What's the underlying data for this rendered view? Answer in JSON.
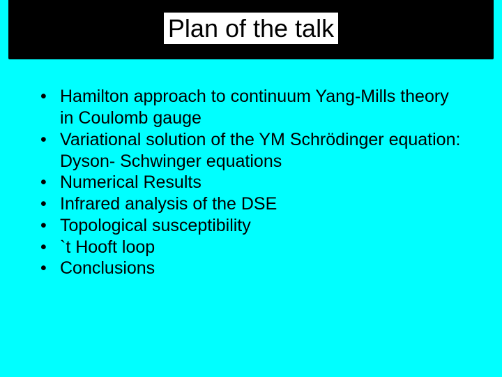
{
  "slide": {
    "background_color": "#00ffff",
    "title_bar_bg": "#000000",
    "title_text_bg": "#ffffff",
    "title_color": "#000000",
    "body_text_color": "#000000",
    "title_fontsize": 36,
    "body_fontsize": 25,
    "font_family": "Arial",
    "title": "Plan of the talk",
    "bullets": [
      "Hamilton approach to continuum Yang-Mills theory in Coulomb gauge",
      "Variational solution of the YM Schrödinger equation: Dyson- Schwinger equations",
      "Numerical Results",
      "Infrared analysis of the DSE",
      "Topological susceptibility",
      "`t Hooft loop",
      "Conclusions"
    ]
  }
}
